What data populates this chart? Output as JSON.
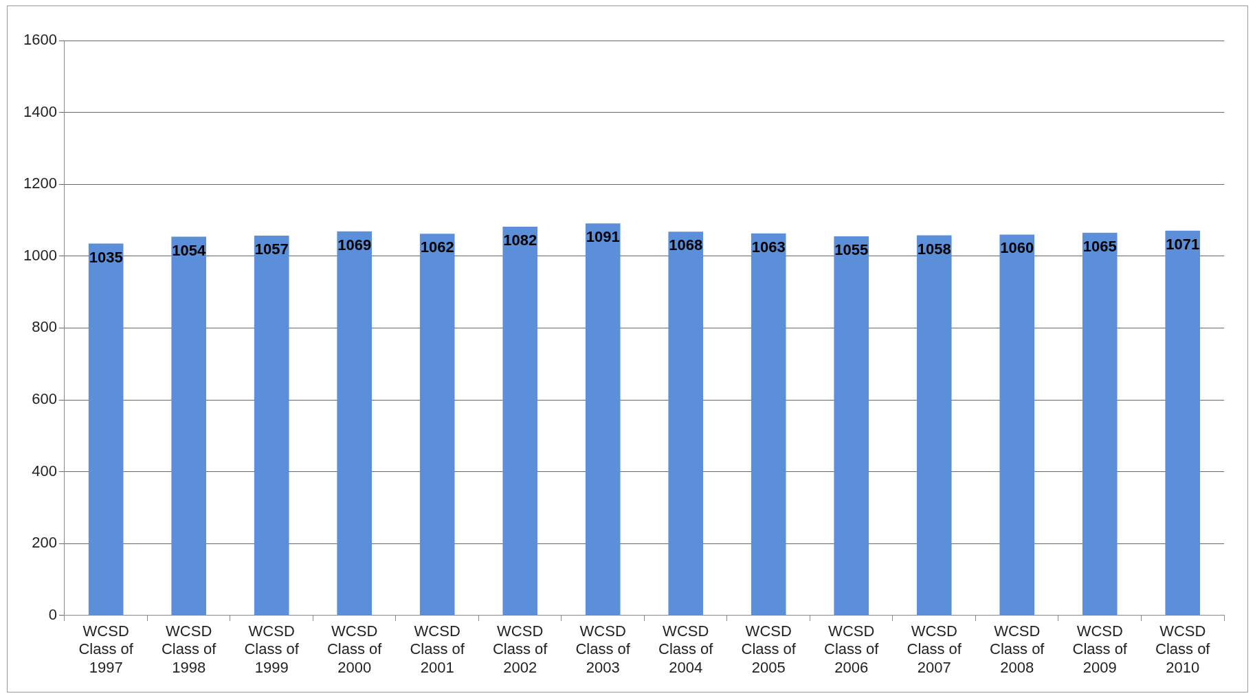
{
  "chart_data": {
    "type": "bar",
    "categories": [
      "WCSD Class of 1997",
      "WCSD Class of 1998",
      "WCSD Class of 1999",
      "WCSD Class of 2000",
      "WCSD Class of 2001",
      "WCSD Class of 2002",
      "WCSD Class of 2003",
      "WCSD Class of 2004",
      "WCSD Class of 2005",
      "WCSD Class of 2006",
      "WCSD Class of 2007",
      "WCSD Class of 2008",
      "WCSD Class of 2009",
      "WCSD Class of 2010"
    ],
    "values": [
      1035,
      1054,
      1057,
      1069,
      1062,
      1082,
      1091,
      1068,
      1063,
      1055,
      1058,
      1060,
      1065,
      1071
    ],
    "color": "#5b8fd9",
    "ylim": [
      0,
      1600
    ],
    "yticks": [
      0,
      200,
      400,
      600,
      800,
      1000,
      1200,
      1400,
      1600
    ],
    "grid": "y",
    "data_labels": true,
    "legend": false
  }
}
